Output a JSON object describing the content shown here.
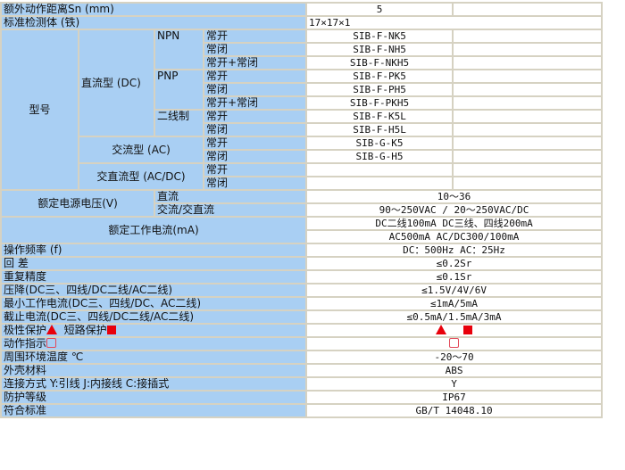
{
  "rows_top": [
    {
      "label": "额外动作距离Sn (mm)",
      "value": "5"
    },
    {
      "label": "标准检测体 (铁)",
      "value": "17×17×1"
    }
  ],
  "model": {
    "label": "型号",
    "dc": "直流型 (DC)",
    "npn": "NPN",
    "pnp": "PNP",
    "two_wire": "二线制",
    "ac": "交流型 (AC)",
    "acdc": "交直流型 (AC/DC)",
    "no": "常开",
    "nc": "常闭",
    "no_nc": "常开+常闭",
    "codes": [
      "SIB-F-NK5",
      "SIB-F-NH5",
      "SIB-F-NKH5",
      "SIB-F-PK5",
      "SIB-F-PH5",
      "SIB-F-PKH5",
      "SIB-F-K5L",
      "SIB-F-H5L",
      "SIB-G-K5",
      "SIB-G-H5",
      "",
      ""
    ]
  },
  "voltage": {
    "label": "额定电源电压(V)",
    "dc_label": "直流",
    "dc": "10～36",
    "ac_label": "交流/交直流",
    "ac": "90～250VAC / 20～250VAC/DC"
  },
  "current": {
    "label": "额定工作电流(mA)",
    "line1": "DC二线100mA DC三线、四线200mA",
    "line2": "AC500mA AC/DC300/100mA"
  },
  "specs": [
    {
      "label": "操作频率 (f)",
      "value": "DC：500Hz AC：25Hz"
    },
    {
      "label": "回 差",
      "value": "≤0.2Sr"
    },
    {
      "label": "重复精度",
      "value": "≤0.1Sr"
    },
    {
      "label": "压降(DC三、四线/DC二线/AC二线)",
      "value": "≤1.5V/4V/6V"
    },
    {
      "label": "最小工作电流(DC三、四线/DC、AC二线)",
      "value": "≤1mA/5mA"
    },
    {
      "label": "截止电流(DC三、四线/DC二线/AC二线)",
      "value": "≤0.5mA/1.5mA/3mA"
    }
  ],
  "protection": {
    "polarity": "极性保护",
    "short": "短路保护"
  },
  "indicator": {
    "label": "动作指示"
  },
  "specs2": [
    {
      "label": "周围环境温度 ℃",
      "value": "-20～70"
    },
    {
      "label": "外壳材料",
      "value": "ABS"
    },
    {
      "label": "连接方式 Y:引线 J:内接线 C:接插式",
      "value": "Y"
    },
    {
      "label": "防护等级",
      "value": "IP67"
    },
    {
      "label": "符合标准",
      "value": "GB/T 14048.10"
    }
  ],
  "colors": {
    "label_bg": "#a9cff3",
    "marker_red": "#e8000b",
    "border": "#d6d2c2"
  }
}
